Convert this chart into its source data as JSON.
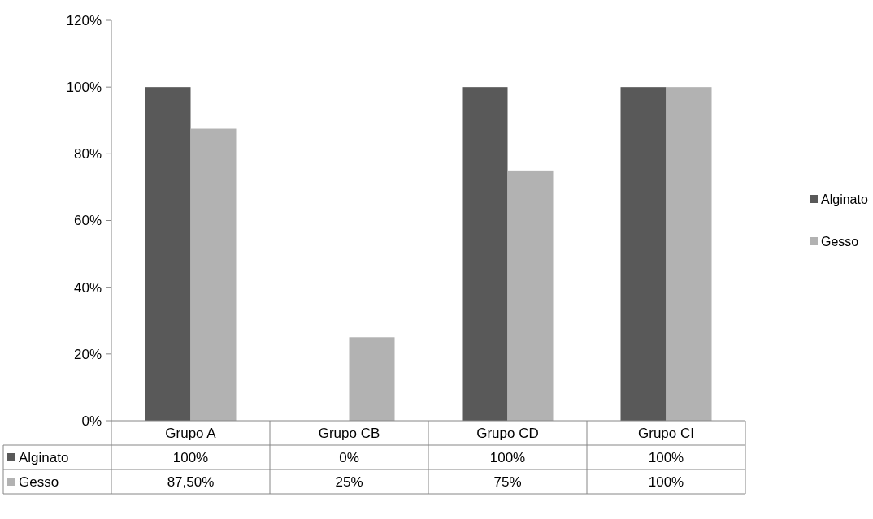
{
  "chart_data": {
    "type": "bar",
    "categories": [
      "Grupo A",
      "Grupo CB",
      "Grupo CD",
      "Grupo CI"
    ],
    "series": [
      {
        "name": "Alginato",
        "color": "#595959",
        "values": [
          100,
          0,
          100,
          100
        ],
        "value_labels": [
          "100%",
          "0%",
          "100%",
          "100%"
        ]
      },
      {
        "name": "Gesso",
        "color": "#b2b2b2",
        "values": [
          87.5,
          25,
          75,
          100
        ],
        "value_labels": [
          "87,50%",
          "25%",
          "75%",
          "100%"
        ]
      }
    ],
    "ylim": [
      0,
      120
    ],
    "yticks": [
      {
        "value": 0,
        "label": "0%"
      },
      {
        "value": 20,
        "label": "20%"
      },
      {
        "value": 40,
        "label": "40%"
      },
      {
        "value": 60,
        "label": "60%"
      },
      {
        "value": 80,
        "label": "80%"
      },
      {
        "value": 100,
        "label": "100%"
      },
      {
        "value": 120,
        "label": "120%"
      }
    ],
    "grid": false,
    "legend": "right"
  }
}
